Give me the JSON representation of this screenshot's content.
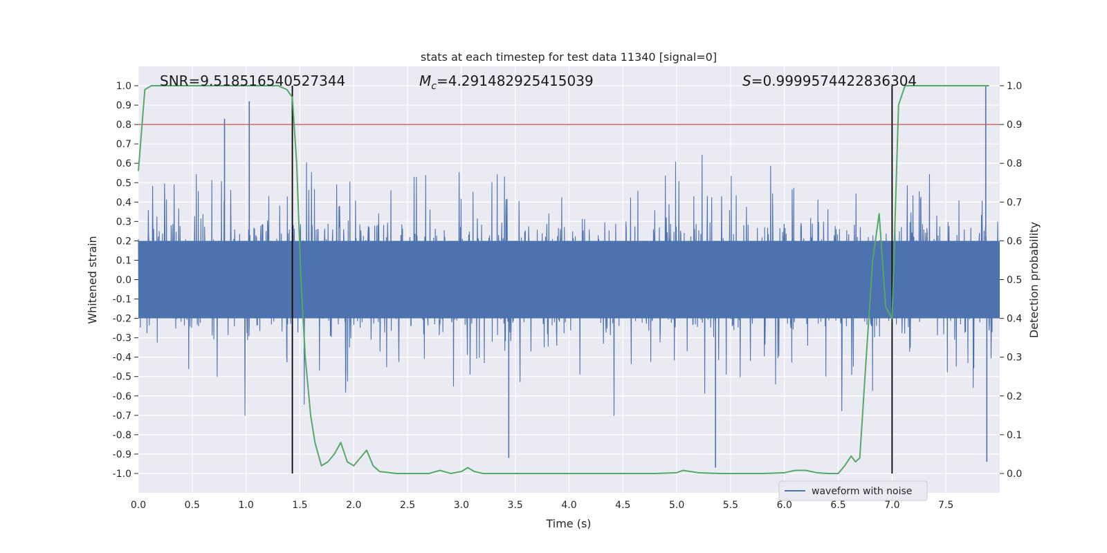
{
  "chart_data": {
    "type": "line",
    "title": "stats at each timestep for test data 11340 [signal=0]",
    "xlabel": "Time (s)",
    "ylabel": "Whitened strain",
    "y2label": "Detection probability",
    "xlim": [
      0.0,
      8.0
    ],
    "ylim": [
      -1.1,
      1.1
    ],
    "y2lim": [
      -0.05,
      1.05
    ],
    "xticks": [
      "0.0",
      "0.5",
      "1.0",
      "1.5",
      "2.0",
      "2.5",
      "3.0",
      "3.5",
      "4.0",
      "4.5",
      "5.0",
      "5.5",
      "6.0",
      "6.5",
      "7.0",
      "7.5"
    ],
    "yticks": [
      "1.0",
      "0.9",
      "0.8",
      "0.7",
      "0.6",
      "0.5",
      "0.4",
      "0.3",
      "0.2",
      "0.1",
      "0.0",
      "-0.1",
      "-0.2",
      "-0.3",
      "-0.4",
      "-0.5",
      "-0.6",
      "-0.7",
      "-0.8",
      "-0.9",
      "-1.0"
    ],
    "y2ticks": [
      "1.0",
      "0.9",
      "0.8",
      "0.7",
      "0.6",
      "0.5",
      "0.4",
      "0.3",
      "0.2",
      "0.1",
      "0.0"
    ],
    "grid": true,
    "legend_position": "lower-right",
    "annotations": {
      "snr": "SNR=9.518516540527344",
      "mc_prefix": "M",
      "mc_sub": "c",
      "mc_value": "=4.291482925415039",
      "s_prefix": "S",
      "s_value": "=0.9999574422836304"
    },
    "series": [
      {
        "name": "waveform with noise",
        "color": "#4c72b0",
        "axis": "left",
        "envelope_typical": 0.35,
        "notable_peaks": [
          {
            "x": 0.8,
            "y": 0.83
          },
          {
            "x": 1.03,
            "y": 0.92
          },
          {
            "x": 7.87,
            "y": 1.0
          },
          {
            "x": 3.44,
            "y": -0.92
          },
          {
            "x": 5.36,
            "y": -0.97
          },
          {
            "x": 7.88,
            "y": -0.94
          }
        ]
      },
      {
        "name": "",
        "color": "#55a868",
        "axis": "right",
        "x": [
          0.0,
          0.06,
          0.12,
          0.2,
          0.4,
          0.6,
          0.8,
          1.0,
          1.2,
          1.3,
          1.38,
          1.43,
          1.47,
          1.51,
          1.55,
          1.6,
          1.64,
          1.7,
          1.76,
          1.82,
          1.88,
          1.94,
          2.0,
          2.06,
          2.12,
          2.18,
          2.24,
          2.4,
          2.6,
          2.7,
          2.8,
          2.9,
          3.0,
          3.06,
          3.12,
          3.2,
          3.4,
          3.6,
          4.0,
          4.4,
          4.8,
          5.0,
          5.06,
          5.2,
          5.4,
          5.6,
          5.8,
          6.0,
          6.1,
          6.2,
          6.3,
          6.4,
          6.5,
          6.56,
          6.62,
          6.66,
          6.7,
          6.76,
          6.82,
          6.88,
          6.94,
          7.0,
          7.06,
          7.12,
          7.4,
          7.6,
          7.9
        ],
        "y": [
          0.78,
          0.99,
          1.0,
          1.0,
          1.0,
          1.0,
          1.0,
          1.0,
          1.0,
          1.0,
          0.99,
          0.97,
          0.8,
          0.5,
          0.3,
          0.15,
          0.08,
          0.02,
          0.03,
          0.05,
          0.08,
          0.03,
          0.02,
          0.04,
          0.06,
          0.02,
          0.005,
          0.0,
          0.0,
          0.0,
          0.008,
          0.0,
          0.005,
          0.015,
          0.005,
          0.0,
          0.0,
          0.0,
          0.0,
          0.0,
          0.0,
          0.002,
          0.008,
          0.002,
          0.0,
          0.0,
          0.0,
          0.002,
          0.008,
          0.008,
          0.002,
          0.0,
          0.0,
          0.02,
          0.045,
          0.03,
          0.04,
          0.3,
          0.55,
          0.67,
          0.43,
          0.4,
          0.95,
          1.0,
          1.0,
          1.0,
          1.0
        ]
      },
      {
        "name": "",
        "color": "#c44e52",
        "axis": "left",
        "type": "hline",
        "y": 0.8
      },
      {
        "name": "",
        "color": "#000000",
        "type": "vlines",
        "x": [
          1.43,
          7.0
        ]
      }
    ]
  }
}
